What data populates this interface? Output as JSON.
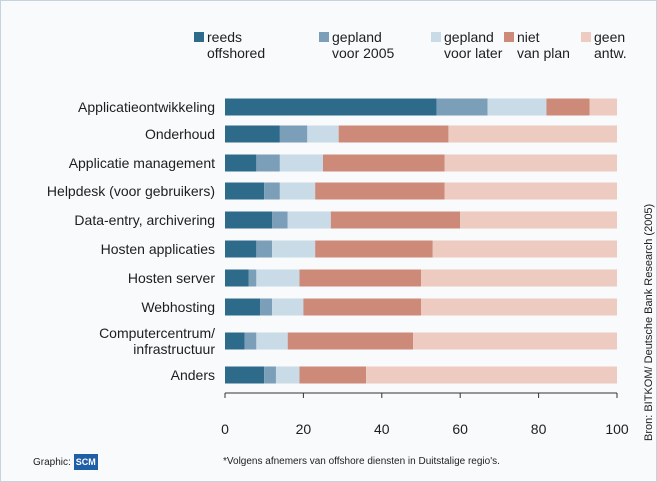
{
  "chart_data": {
    "type": "stacked_barh",
    "categories": [
      "Applicatieontwikkeling",
      "Onderhoud",
      "Applicatie management",
      "Helpdesk (voor gebruikers)",
      "Data-entry, archivering",
      "Hosten applicaties",
      "Hosten server",
      "Webhosting",
      "Computercentrum/\ninfrastructuur",
      "Anders"
    ],
    "series": [
      {
        "name": "reeds\noffshored",
        "color": "#2e6a8a",
        "values": [
          54,
          14,
          8,
          10,
          12,
          8,
          6,
          9,
          5,
          10
        ]
      },
      {
        "name": "gepland\nvoor 2005",
        "color": "#7b9fb8",
        "values": [
          13,
          7,
          6,
          4,
          4,
          4,
          2,
          3,
          3,
          3
        ]
      },
      {
        "name": "gepland\nvoor later",
        "color": "#c9dbe6",
        "values": [
          15,
          8,
          11,
          9,
          11,
          11,
          11,
          8,
          8,
          6
        ]
      },
      {
        "name": "niet\nvan plan",
        "color": "#cd8a78",
        "values": [
          11,
          28,
          31,
          33,
          33,
          30,
          31,
          30,
          32,
          17
        ]
      },
      {
        "name": "geen\nantw.",
        "color": "#edcbc1",
        "values": [
          7,
          43,
          44,
          44,
          40,
          47,
          50,
          50,
          52,
          64
        ]
      }
    ],
    "xlim": [
      0,
      100
    ],
    "xticks": [
      0,
      20,
      40,
      60,
      80,
      100
    ],
    "footer_label": "Graphic:",
    "logo": "SCM",
    "footnote": "*Volgens afnemers van offshore diensten in Duitstalige regio's.",
    "source": "Bron: BITKOM/ Deutsche Bank Research (2005)"
  }
}
